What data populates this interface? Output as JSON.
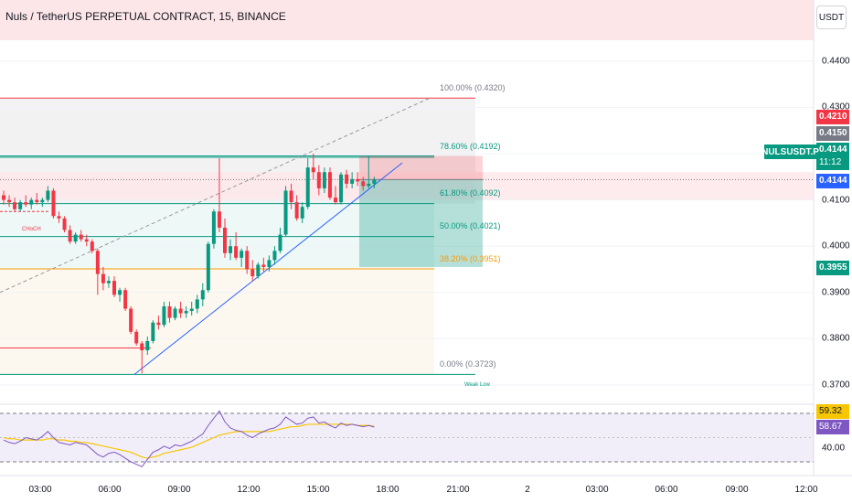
{
  "header": {
    "symbol_title": "Nuls / TetherUS PERPETUAL CONTRACT, 15, BINANCE",
    "currency_button": "USDT"
  },
  "colors": {
    "up": "#089981",
    "down": "#f23645",
    "fib_red": "#f23645",
    "fib_teal": "#089981",
    "fib_orange": "#ff9800",
    "trend_blue": "#2962ff",
    "rsi_line": "#7e57c2",
    "rsi_ma": "#f7c600"
  },
  "price_axis": {
    "ticks": [
      "0.4400",
      "0.4300",
      "0.4100",
      "0.4000",
      "0.3900",
      "0.3800",
      "0.3700"
    ],
    "badges": {
      "red_level": "0.4210",
      "gray_level": "0.4150",
      "last_price": "0.4144",
      "countdown": "11:12",
      "last_price_line": "0.4144",
      "green_level": "0.3955"
    },
    "symbol_tag": "NULSUSDT.P"
  },
  "time_axis": {
    "ticks": [
      "03:00",
      "06:00",
      "09:00",
      "12:00",
      "15:00",
      "18:00",
      "21:00",
      "2",
      "03:00",
      "06:00",
      "09:00",
      "12:00"
    ]
  },
  "fib_levels": [
    {
      "label": "100.00% (0.4320)",
      "price": 0.432,
      "color": "#f23645"
    },
    {
      "label": "78.60% (0.4192)",
      "price": 0.4192,
      "color": "#089981"
    },
    {
      "label": "61.80% (0.4092)",
      "price": 0.4092,
      "color": "#089981"
    },
    {
      "label": "50.00% (0.4021)",
      "price": 0.4021,
      "color": "#089981"
    },
    {
      "label": "38.20% (0.3951)",
      "price": 0.3951,
      "color": "#ff9800"
    },
    {
      "label": "0.00% (0.3723)",
      "price": 0.3723,
      "color": "#089981"
    }
  ],
  "annotations": {
    "choch": "CHoCH",
    "weak_low": "Weak Low"
  },
  "rsi": {
    "upper_value": "59.32",
    "current_value": "58.67",
    "lower_level": "40.00"
  },
  "chart_data": {
    "type": "candlestick",
    "title": "Nuls / TetherUS PERPETUAL CONTRACT, 15, BINANCE",
    "timeframe": "15",
    "ylim": [
      0.368,
      0.444
    ],
    "last_price": 0.4144,
    "candles": [
      [
        0.411,
        0.412,
        0.409,
        0.41
      ],
      [
        0.41,
        0.411,
        0.4085,
        0.4095
      ],
      [
        0.4095,
        0.4105,
        0.4075,
        0.408
      ],
      [
        0.408,
        0.41,
        0.4075,
        0.4095
      ],
      [
        0.4095,
        0.411,
        0.4085,
        0.409
      ],
      [
        0.409,
        0.4105,
        0.408,
        0.41
      ],
      [
        0.41,
        0.4115,
        0.409,
        0.4095
      ],
      [
        0.4095,
        0.4105,
        0.4085,
        0.41
      ],
      [
        0.41,
        0.413,
        0.4095,
        0.412
      ],
      [
        0.412,
        0.4125,
        0.406,
        0.4065
      ],
      [
        0.4065,
        0.4075,
        0.405,
        0.406
      ],
      [
        0.406,
        0.4065,
        0.403,
        0.4035
      ],
      [
        0.4035,
        0.4045,
        0.4005,
        0.401
      ],
      [
        0.401,
        0.403,
        0.4005,
        0.4025
      ],
      [
        0.4025,
        0.4035,
        0.401,
        0.4015
      ],
      [
        0.4015,
        0.4025,
        0.4,
        0.401
      ],
      [
        0.401,
        0.4015,
        0.3985,
        0.399
      ],
      [
        0.399,
        0.3995,
        0.3895,
        0.394
      ],
      [
        0.394,
        0.3955,
        0.3905,
        0.392
      ],
      [
        0.392,
        0.3935,
        0.391,
        0.3925
      ],
      [
        0.3925,
        0.3935,
        0.389,
        0.3895
      ],
      [
        0.3895,
        0.391,
        0.388,
        0.3905
      ],
      [
        0.3905,
        0.391,
        0.386,
        0.3865
      ],
      [
        0.3865,
        0.387,
        0.381,
        0.3815
      ],
      [
        0.3815,
        0.382,
        0.3785,
        0.379
      ],
      [
        0.379,
        0.3795,
        0.3725,
        0.3775
      ],
      [
        0.3775,
        0.3805,
        0.3765,
        0.3795
      ],
      [
        0.3795,
        0.384,
        0.379,
        0.3835
      ],
      [
        0.3835,
        0.385,
        0.382,
        0.383
      ],
      [
        0.383,
        0.388,
        0.3825,
        0.387
      ],
      [
        0.387,
        0.388,
        0.3835,
        0.3845
      ],
      [
        0.3845,
        0.387,
        0.384,
        0.3865
      ],
      [
        0.3865,
        0.388,
        0.3845,
        0.3855
      ],
      [
        0.3855,
        0.387,
        0.3845,
        0.386
      ],
      [
        0.386,
        0.388,
        0.385,
        0.3865
      ],
      [
        0.3865,
        0.3895,
        0.3855,
        0.3885
      ],
      [
        0.3885,
        0.392,
        0.387,
        0.3905
      ],
      [
        0.3905,
        0.401,
        0.39,
        0.4005
      ],
      [
        0.4005,
        0.408,
        0.3995,
        0.4075
      ],
      [
        0.4075,
        0.419,
        0.403,
        0.404
      ],
      [
        0.404,
        0.406,
        0.3975,
        0.3985
      ],
      [
        0.3985,
        0.4015,
        0.397,
        0.4
      ],
      [
        0.4,
        0.403,
        0.397,
        0.3975
      ],
      [
        0.3975,
        0.3995,
        0.3955,
        0.399
      ],
      [
        0.399,
        0.4,
        0.394,
        0.395
      ],
      [
        0.395,
        0.397,
        0.3925,
        0.3935
      ],
      [
        0.3935,
        0.3965,
        0.393,
        0.396
      ],
      [
        0.396,
        0.3975,
        0.3945,
        0.3955
      ],
      [
        0.3955,
        0.398,
        0.3945,
        0.397
      ],
      [
        0.397,
        0.4,
        0.396,
        0.399
      ],
      [
        0.399,
        0.404,
        0.3985,
        0.4025
      ],
      [
        0.4025,
        0.413,
        0.402,
        0.412
      ],
      [
        0.412,
        0.4135,
        0.408,
        0.4095
      ],
      [
        0.4095,
        0.411,
        0.4055,
        0.406
      ],
      [
        0.406,
        0.4095,
        0.405,
        0.4085
      ],
      [
        0.4085,
        0.419,
        0.408,
        0.417
      ],
      [
        0.417,
        0.42,
        0.4145,
        0.416
      ],
      [
        0.416,
        0.4175,
        0.411,
        0.4125
      ],
      [
        0.4125,
        0.417,
        0.4115,
        0.416
      ],
      [
        0.416,
        0.417,
        0.41,
        0.4105
      ],
      [
        0.4105,
        0.413,
        0.409,
        0.4095
      ],
      [
        0.4095,
        0.416,
        0.409,
        0.4155
      ],
      [
        0.4155,
        0.4165,
        0.4125,
        0.4135
      ],
      [
        0.4135,
        0.416,
        0.4125,
        0.4145
      ],
      [
        0.4145,
        0.416,
        0.413,
        0.414
      ],
      [
        0.414,
        0.415,
        0.412,
        0.413
      ],
      [
        0.413,
        0.4195,
        0.4125,
        0.4135
      ],
      [
        0.4135,
        0.415,
        0.4125,
        0.4144
      ]
    ],
    "rsi_line": [
      48,
      46,
      45,
      47,
      50,
      49,
      48,
      51,
      55,
      50,
      46,
      45,
      44,
      46,
      45,
      44,
      40,
      36,
      34,
      37,
      38,
      36,
      33,
      30,
      28,
      26,
      32,
      38,
      40,
      43,
      41,
      44,
      43,
      45,
      47,
      50,
      53,
      60,
      66,
      72,
      63,
      58,
      56,
      55,
      52,
      50,
      53,
      55,
      57,
      58,
      61,
      67,
      64,
      61,
      62,
      66,
      67,
      62,
      63,
      60,
      58,
      62,
      60,
      61,
      60,
      59,
      60,
      58.67
    ],
    "rsi_ma": [
      50,
      49,
      49,
      48,
      48,
      48,
      48,
      48,
      49,
      49,
      48,
      48,
      47,
      47,
      46,
      46,
      45,
      44,
      43,
      42,
      41,
      40,
      39,
      38,
      36,
      34,
      33,
      34,
      35,
      37,
      38,
      39,
      40,
      41,
      42,
      44,
      46,
      48,
      50,
      52,
      53,
      54,
      55,
      55,
      55,
      55,
      55,
      55,
      55,
      56,
      57,
      58,
      59,
      59,
      60,
      61,
      61,
      61,
      61,
      61,
      61,
      61,
      61,
      61,
      60,
      60,
      60,
      59.32
    ]
  }
}
